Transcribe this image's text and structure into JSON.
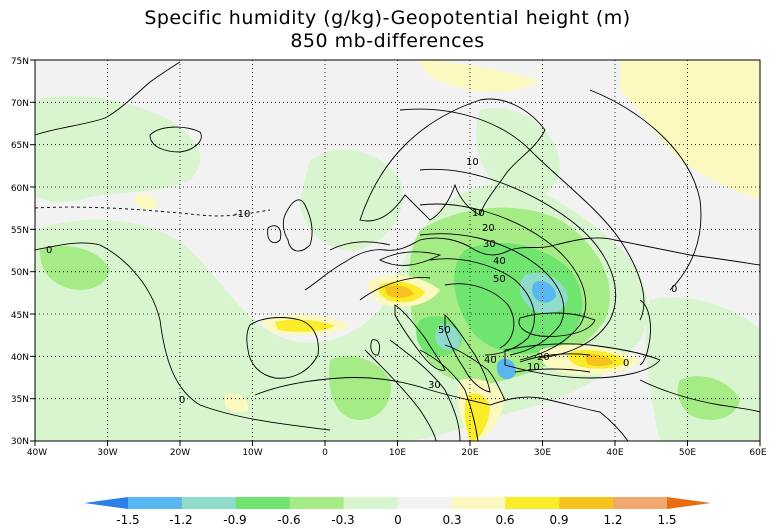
{
  "title": {
    "line1": "Specific humidity (g/kg)-Geopotential height (m)",
    "line2": "850 mb-differences"
  },
  "map": {
    "lon_labels": [
      "40W",
      "30W",
      "20W",
      "10W",
      "0",
      "10E",
      "20E",
      "30E",
      "40E",
      "50E",
      "60E"
    ],
    "lat_labels": [
      "75N",
      "70N",
      "65N",
      "60N",
      "55N",
      "50N",
      "45N",
      "40N",
      "35N",
      "30N"
    ],
    "lon_range": [
      -40,
      60
    ],
    "lat_range": [
      30,
      75
    ],
    "contour_labels": [
      "-10",
      "0",
      "0",
      "0",
      "0",
      "10",
      "10",
      "20",
      "30",
      "40",
      "50",
      "50",
      "40",
      "30",
      "20",
      "10"
    ],
    "colors": {
      "land_outline": "#000000",
      "background": "#f2f2f2"
    }
  },
  "colorbar": {
    "labels": [
      "-1.5",
      "-1.2",
      "-0.9",
      "-0.6",
      "-0.3",
      "0",
      "0.3",
      "0.6",
      "0.9",
      "1.2",
      "1.5"
    ],
    "colors": [
      "#2c7ee8",
      "#5ab6f0",
      "#8fdccb",
      "#6fe46f",
      "#a6ec86",
      "#d8f5cf",
      "#f2f2f2",
      "#fbf8c0",
      "#fbec2a",
      "#f5c21e",
      "#f0a86c",
      "#eb8a2a",
      "#e86c12"
    ]
  }
}
